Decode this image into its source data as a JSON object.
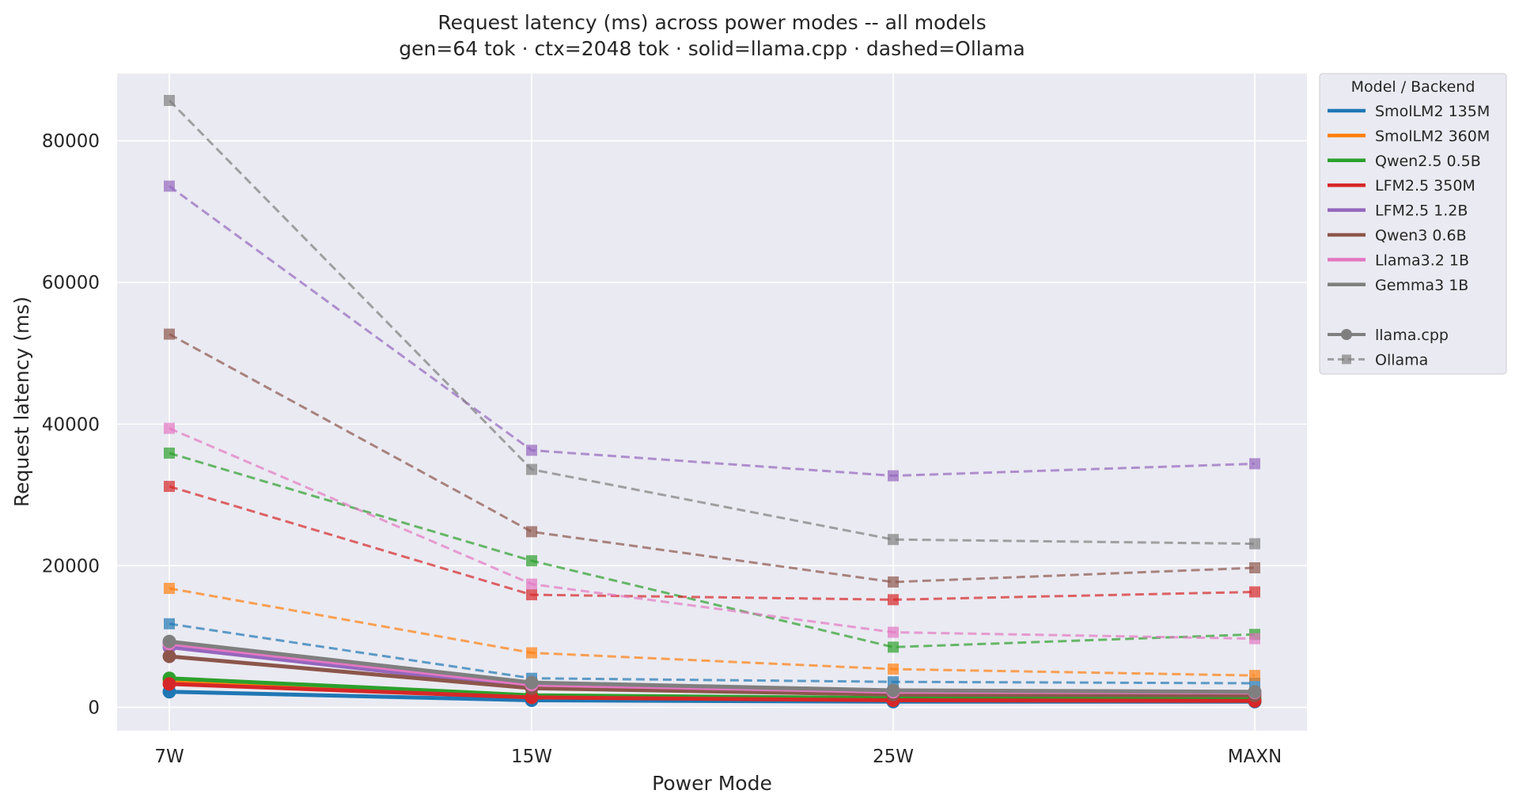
{
  "chart_data": {
    "type": "line",
    "title": "Request latency (ms) across power modes -- all models",
    "subtitle": "gen=64 tok · ctx=2048 tok · solid=llama.cpp · dashed=Ollama",
    "xlabel": "Power Mode",
    "ylabel": "Request latency (ms)",
    "categories": [
      "7W",
      "15W",
      "25W",
      "MAXN"
    ],
    "ylim": [
      -3300,
      89500
    ],
    "yticks": [
      0,
      20000,
      40000,
      60000,
      80000
    ],
    "grid": true,
    "legend_position": "outside-right",
    "legend_title": "Model  /  Backend",
    "models": [
      {
        "name": "SmolLM2 135M",
        "color": "#1f77b4"
      },
      {
        "name": "SmolLM2 360M",
        "color": "#ff7f0e"
      },
      {
        "name": "Qwen2.5 0.5B",
        "color": "#2ca02c"
      },
      {
        "name": "LFM2.5 350M",
        "color": "#d62728"
      },
      {
        "name": "LFM2.5 1.2B",
        "color": "#9467bd"
      },
      {
        "name": "Qwen3 0.6B",
        "color": "#8c564b"
      },
      {
        "name": "Llama3.2 1B",
        "color": "#e377c2"
      },
      {
        "name": "Gemma3 1B",
        "color": "#7f7f7f"
      }
    ],
    "backends": [
      {
        "name": "llama.cpp",
        "style": "solid",
        "marker": "circle"
      },
      {
        "name": "Ollama",
        "style": "dashed",
        "marker": "square"
      }
    ],
    "series": [
      {
        "model": "SmolLM2 135M",
        "backend": "llama.cpp",
        "values": [
          2200,
          1000,
          800,
          800
        ]
      },
      {
        "model": "SmolLM2 360M",
        "backend": "llama.cpp",
        "values": [
          3800,
          1600,
          1200,
          1100
        ]
      },
      {
        "model": "Qwen2.5 0.5B",
        "backend": "llama.cpp",
        "values": [
          4100,
          1700,
          1300,
          1200
        ]
      },
      {
        "model": "LFM2.5 350M",
        "backend": "llama.cpp",
        "values": [
          3300,
          1400,
          1000,
          900
        ]
      },
      {
        "model": "LFM2.5 1.2B",
        "backend": "llama.cpp",
        "values": [
          8500,
          2800,
          2000,
          1900
        ]
      },
      {
        "model": "Qwen3 0.6B",
        "backend": "llama.cpp",
        "values": [
          7200,
          2700,
          1800,
          1700
        ]
      },
      {
        "model": "Llama3.2 1B",
        "backend": "llama.cpp",
        "values": [
          9000,
          3200,
          2200,
          2100
        ]
      },
      {
        "model": "Gemma3 1B",
        "backend": "llama.cpp",
        "values": [
          9300,
          3500,
          2400,
          2200
        ]
      },
      {
        "model": "SmolLM2 135M",
        "backend": "Ollama",
        "values": [
          11800,
          4100,
          3600,
          3400
        ]
      },
      {
        "model": "SmolLM2 360M",
        "backend": "Ollama",
        "values": [
          16800,
          7700,
          5400,
          4500
        ]
      },
      {
        "model": "Qwen2.5 0.5B",
        "backend": "Ollama",
        "values": [
          35900,
          20700,
          8500,
          10300
        ]
      },
      {
        "model": "LFM2.5 350M",
        "backend": "Ollama",
        "values": [
          31200,
          15900,
          15200,
          16300
        ]
      },
      {
        "model": "LFM2.5 1.2B",
        "backend": "Ollama",
        "values": [
          73600,
          36300,
          32700,
          34400
        ]
      },
      {
        "model": "Qwen3 0.6B",
        "backend": "Ollama",
        "values": [
          52700,
          24800,
          17700,
          19700
        ]
      },
      {
        "model": "Llama3.2 1B",
        "backend": "Ollama",
        "values": [
          39400,
          17400,
          10600,
          9700
        ]
      },
      {
        "model": "Gemma3 1B",
        "backend": "Ollama",
        "values": [
          85700,
          33600,
          23700,
          23100
        ]
      }
    ]
  }
}
